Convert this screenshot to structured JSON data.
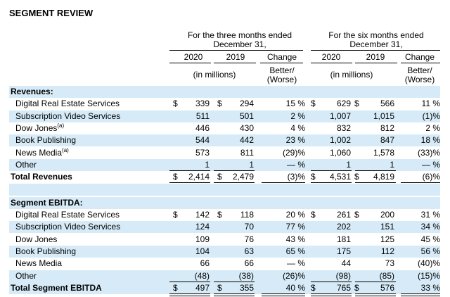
{
  "title": "SEGMENT REVIEW",
  "headers": {
    "three_months": "For the three months ended December 31,",
    "six_months": "For the six months ended December 31,",
    "y2020": "2020",
    "y2019": "2019",
    "change": "Change",
    "in_millions": "(in millions)",
    "better_worse": "Better/ (Worse)"
  },
  "revenues": {
    "section_label": "Revenues:",
    "rows": [
      {
        "label": "Digital Real Estate Services",
        "note": "",
        "dollar": true,
        "q20": "339",
        "q19": "294",
        "qchg": "15 %",
        "s20": "629",
        "s19": "566",
        "schg": "11 %"
      },
      {
        "label": "Subscription Video Services",
        "note": "",
        "dollar": false,
        "q20": "511",
        "q19": "501",
        "qchg": "2 %",
        "s20": "1,007",
        "s19": "1,015",
        "schg": "(1)%"
      },
      {
        "label": "Dow Jones",
        "note": "(a)",
        "dollar": false,
        "q20": "446",
        "q19": "430",
        "qchg": "4 %",
        "s20": "832",
        "s19": "812",
        "schg": "2 %"
      },
      {
        "label": "Book Publishing",
        "note": "",
        "dollar": false,
        "q20": "544",
        "q19": "442",
        "qchg": "23 %",
        "s20": "1,002",
        "s19": "847",
        "schg": "18 %"
      },
      {
        "label": "News Media",
        "note": "(a)",
        "dollar": false,
        "q20": "573",
        "q19": "811",
        "qchg": "(29)%",
        "s20": "1,060",
        "s19": "1,578",
        "schg": "(33)%"
      },
      {
        "label": "Other",
        "note": "",
        "dollar": false,
        "q20": "1",
        "q19": "1",
        "qchg": "— %",
        "s20": "1",
        "s19": "1",
        "schg": "— %"
      }
    ],
    "total": {
      "label": "Total Revenues",
      "q20": "2,414",
      "q19": "2,479",
      "qchg": "(3)%",
      "s20": "4,531",
      "s19": "4,819",
      "schg": "(6)%"
    }
  },
  "ebitda": {
    "section_label": "Segment EBITDA:",
    "rows": [
      {
        "label": "Digital Real Estate Services",
        "note": "",
        "dollar": true,
        "q20": "142",
        "q19": "118",
        "qchg": "20 %",
        "s20": "261",
        "s19": "200",
        "schg": "31 %"
      },
      {
        "label": "Subscription Video Services",
        "note": "",
        "dollar": false,
        "q20": "124",
        "q19": "70",
        "qchg": "77 %",
        "s20": "202",
        "s19": "151",
        "schg": "34 %"
      },
      {
        "label": "Dow Jones",
        "note": "",
        "dollar": false,
        "q20": "109",
        "q19": "76",
        "qchg": "43 %",
        "s20": "181",
        "s19": "125",
        "schg": "45 %"
      },
      {
        "label": "Book Publishing",
        "note": "",
        "dollar": false,
        "q20": "104",
        "q19": "63",
        "qchg": "65 %",
        "s20": "175",
        "s19": "112",
        "schg": "56 %"
      },
      {
        "label": "News Media",
        "note": "",
        "dollar": false,
        "q20": "66",
        "q19": "66",
        "qchg": "— %",
        "s20": "44",
        "s19": "73",
        "schg": "(40)%"
      },
      {
        "label": "Other",
        "note": "",
        "dollar": false,
        "q20": "(48)",
        "q19": "(38)",
        "qchg": "(26)%",
        "s20": "(98)",
        "s19": "(85)",
        "schg": "(15)%"
      }
    ],
    "total": {
      "label": "Total Segment EBITDA",
      "q20": "497",
      "q19": "355",
      "qchg": "40 %",
      "s20": "765",
      "s19": "576",
      "schg": "33 %"
    }
  },
  "currency_symbol": "$",
  "colors": {
    "band": "#d6ebf7",
    "text": "#000000"
  }
}
